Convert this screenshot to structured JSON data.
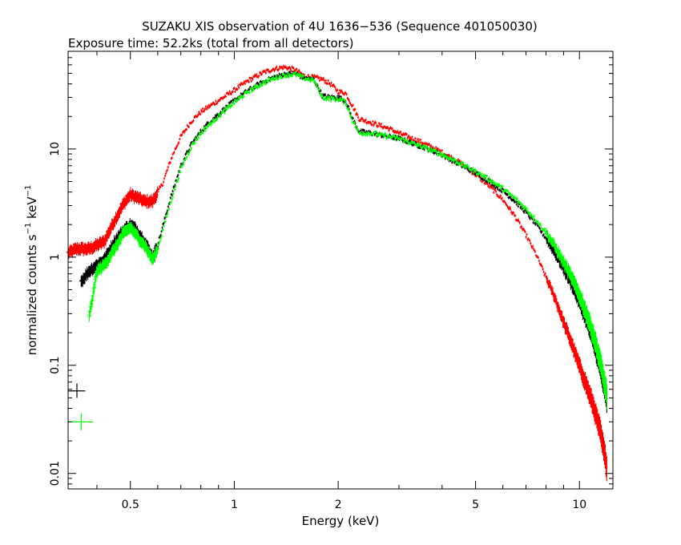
{
  "chart_data": {
    "type": "scatter",
    "title": "SUZAKU XIS observation of 4U 1636−536 (Sequence 401050030)",
    "subtitle": "Exposure time: 52.2ks (total from all detectors)",
    "xlabel": "Energy (keV)",
    "ylabel_main": "normalized counts s",
    "ylabel_mid": " keV",
    "ylabel_sup": "−1",
    "x_scale": "log",
    "y_scale": "log",
    "xlim": [
      0.33,
      12.5
    ],
    "ylim": [
      0.0072,
      80
    ],
    "x_ticks": [
      {
        "value": 0.5,
        "label": "0.5"
      },
      {
        "value": 1,
        "label": "1"
      },
      {
        "value": 2,
        "label": "2"
      },
      {
        "value": 5,
        "label": "5"
      },
      {
        "value": 10,
        "label": "10"
      }
    ],
    "y_ticks": [
      {
        "value": 0.01,
        "label": "0.01"
      },
      {
        "value": 0.1,
        "label": "0.1"
      },
      {
        "value": 1,
        "label": "1"
      },
      {
        "value": 10,
        "label": "10"
      }
    ],
    "grid": false,
    "legend": "none",
    "series": [
      {
        "color": "#ff0000",
        "x": [
          0.33,
          0.35,
          0.38,
          0.42,
          0.45,
          0.48,
          0.5,
          0.52,
          0.55,
          0.58,
          0.62,
          0.66,
          0.7,
          0.75,
          0.8,
          0.85,
          0.9,
          1.0,
          1.1,
          1.2,
          1.3,
          1.4,
          1.5,
          1.6,
          1.7,
          1.8,
          1.9,
          2.0,
          2.1,
          2.2,
          2.3,
          2.5,
          2.8,
          3.0,
          3.5,
          4.0,
          4.5,
          5.0,
          5.5,
          6.0,
          6.5,
          7.0,
          7.5,
          8.0,
          8.5,
          9.0,
          9.5,
          10.0,
          10.5,
          11.0,
          11.5,
          12.0
        ],
        "y": [
          1.1,
          1.2,
          1.2,
          1.4,
          2.2,
          3.2,
          3.8,
          3.6,
          3.3,
          3.3,
          4.8,
          8.5,
          13,
          18,
          22,
          25,
          28,
          35,
          43,
          50,
          55,
          57,
          54,
          47,
          46,
          44,
          40,
          34,
          33,
          25,
          19,
          17.5,
          15.5,
          14,
          11.5,
          9.3,
          7.5,
          5.8,
          4.5,
          3.4,
          2.4,
          1.6,
          1.05,
          0.65,
          0.42,
          0.25,
          0.16,
          0.1,
          0.065,
          0.042,
          0.025,
          0.012
        ]
      },
      {
        "color": "#000000",
        "x": [
          0.36,
          0.38,
          0.4,
          0.42,
          0.45,
          0.48,
          0.5,
          0.52,
          0.55,
          0.58,
          0.6,
          0.65,
          0.7,
          0.75,
          0.8,
          0.85,
          0.9,
          1.0,
          1.1,
          1.2,
          1.3,
          1.4,
          1.5,
          1.6,
          1.7,
          1.8,
          1.9,
          2.0,
          2.1,
          2.2,
          2.3,
          2.5,
          2.8,
          3.0,
          3.5,
          4.0,
          4.5,
          5.0,
          5.5,
          6.0,
          6.5,
          7.0,
          7.5,
          8.0,
          8.5,
          9.0,
          9.5,
          10.0,
          10.5,
          11.0,
          11.5,
          12.0
        ],
        "y": [
          0.6,
          0.75,
          0.85,
          0.95,
          1.4,
          1.8,
          2.0,
          1.8,
          1.4,
          1.0,
          1.3,
          3.3,
          7.0,
          11,
          14.5,
          18,
          21,
          28,
          35,
          41,
          46,
          49,
          50,
          45,
          44,
          31,
          30,
          30,
          28,
          19,
          14.5,
          14,
          13,
          12.5,
          10.5,
          8.8,
          7.2,
          6.0,
          5.0,
          4.1,
          3.3,
          2.6,
          2.0,
          1.5,
          1.1,
          0.8,
          0.58,
          0.4,
          0.27,
          0.17,
          0.1,
          0.05
        ]
      },
      {
        "color": "#00ff00",
        "x": [
          0.38,
          0.4,
          0.42,
          0.45,
          0.48,
          0.5,
          0.52,
          0.55,
          0.58,
          0.6,
          0.65,
          0.7,
          0.75,
          0.8,
          0.85,
          0.9,
          1.0,
          1.1,
          1.2,
          1.3,
          1.4,
          1.5,
          1.6,
          1.7,
          1.8,
          1.9,
          2.0,
          2.1,
          2.2,
          2.3,
          2.5,
          2.8,
          3.0,
          3.5,
          4.0,
          4.5,
          5.0,
          5.5,
          6.0,
          6.5,
          7.0,
          7.5,
          8.0,
          8.5,
          9.0,
          9.5,
          10.0,
          10.5,
          11.0,
          11.5,
          12.0
        ],
        "y": [
          0.28,
          0.75,
          0.85,
          1.2,
          1.7,
          1.9,
          1.6,
          1.3,
          0.95,
          1.2,
          3.0,
          6.5,
          10.5,
          14,
          17,
          20,
          27,
          34,
          40,
          45,
          48,
          49,
          45,
          43,
          30,
          29,
          29,
          27,
          18.5,
          14,
          14,
          13,
          12.5,
          10.5,
          8.9,
          7.4,
          6.2,
          5.2,
          4.3,
          3.5,
          2.8,
          2.2,
          1.7,
          1.25,
          0.9,
          0.65,
          0.45,
          0.3,
          0.19,
          0.11,
          0.055
        ]
      }
    ],
    "error_markers": [
      {
        "color": "#000000",
        "x": 0.35,
        "x_lo": 0.33,
        "x_hi": 0.37,
        "y": 0.058,
        "y_lo": 0.05,
        "y_hi": 0.068
      },
      {
        "color": "#00ff00",
        "x": 0.36,
        "x_lo": 0.33,
        "x_hi": 0.39,
        "y": 0.03,
        "y_lo": 0.025,
        "y_hi": 0.036
      }
    ]
  }
}
